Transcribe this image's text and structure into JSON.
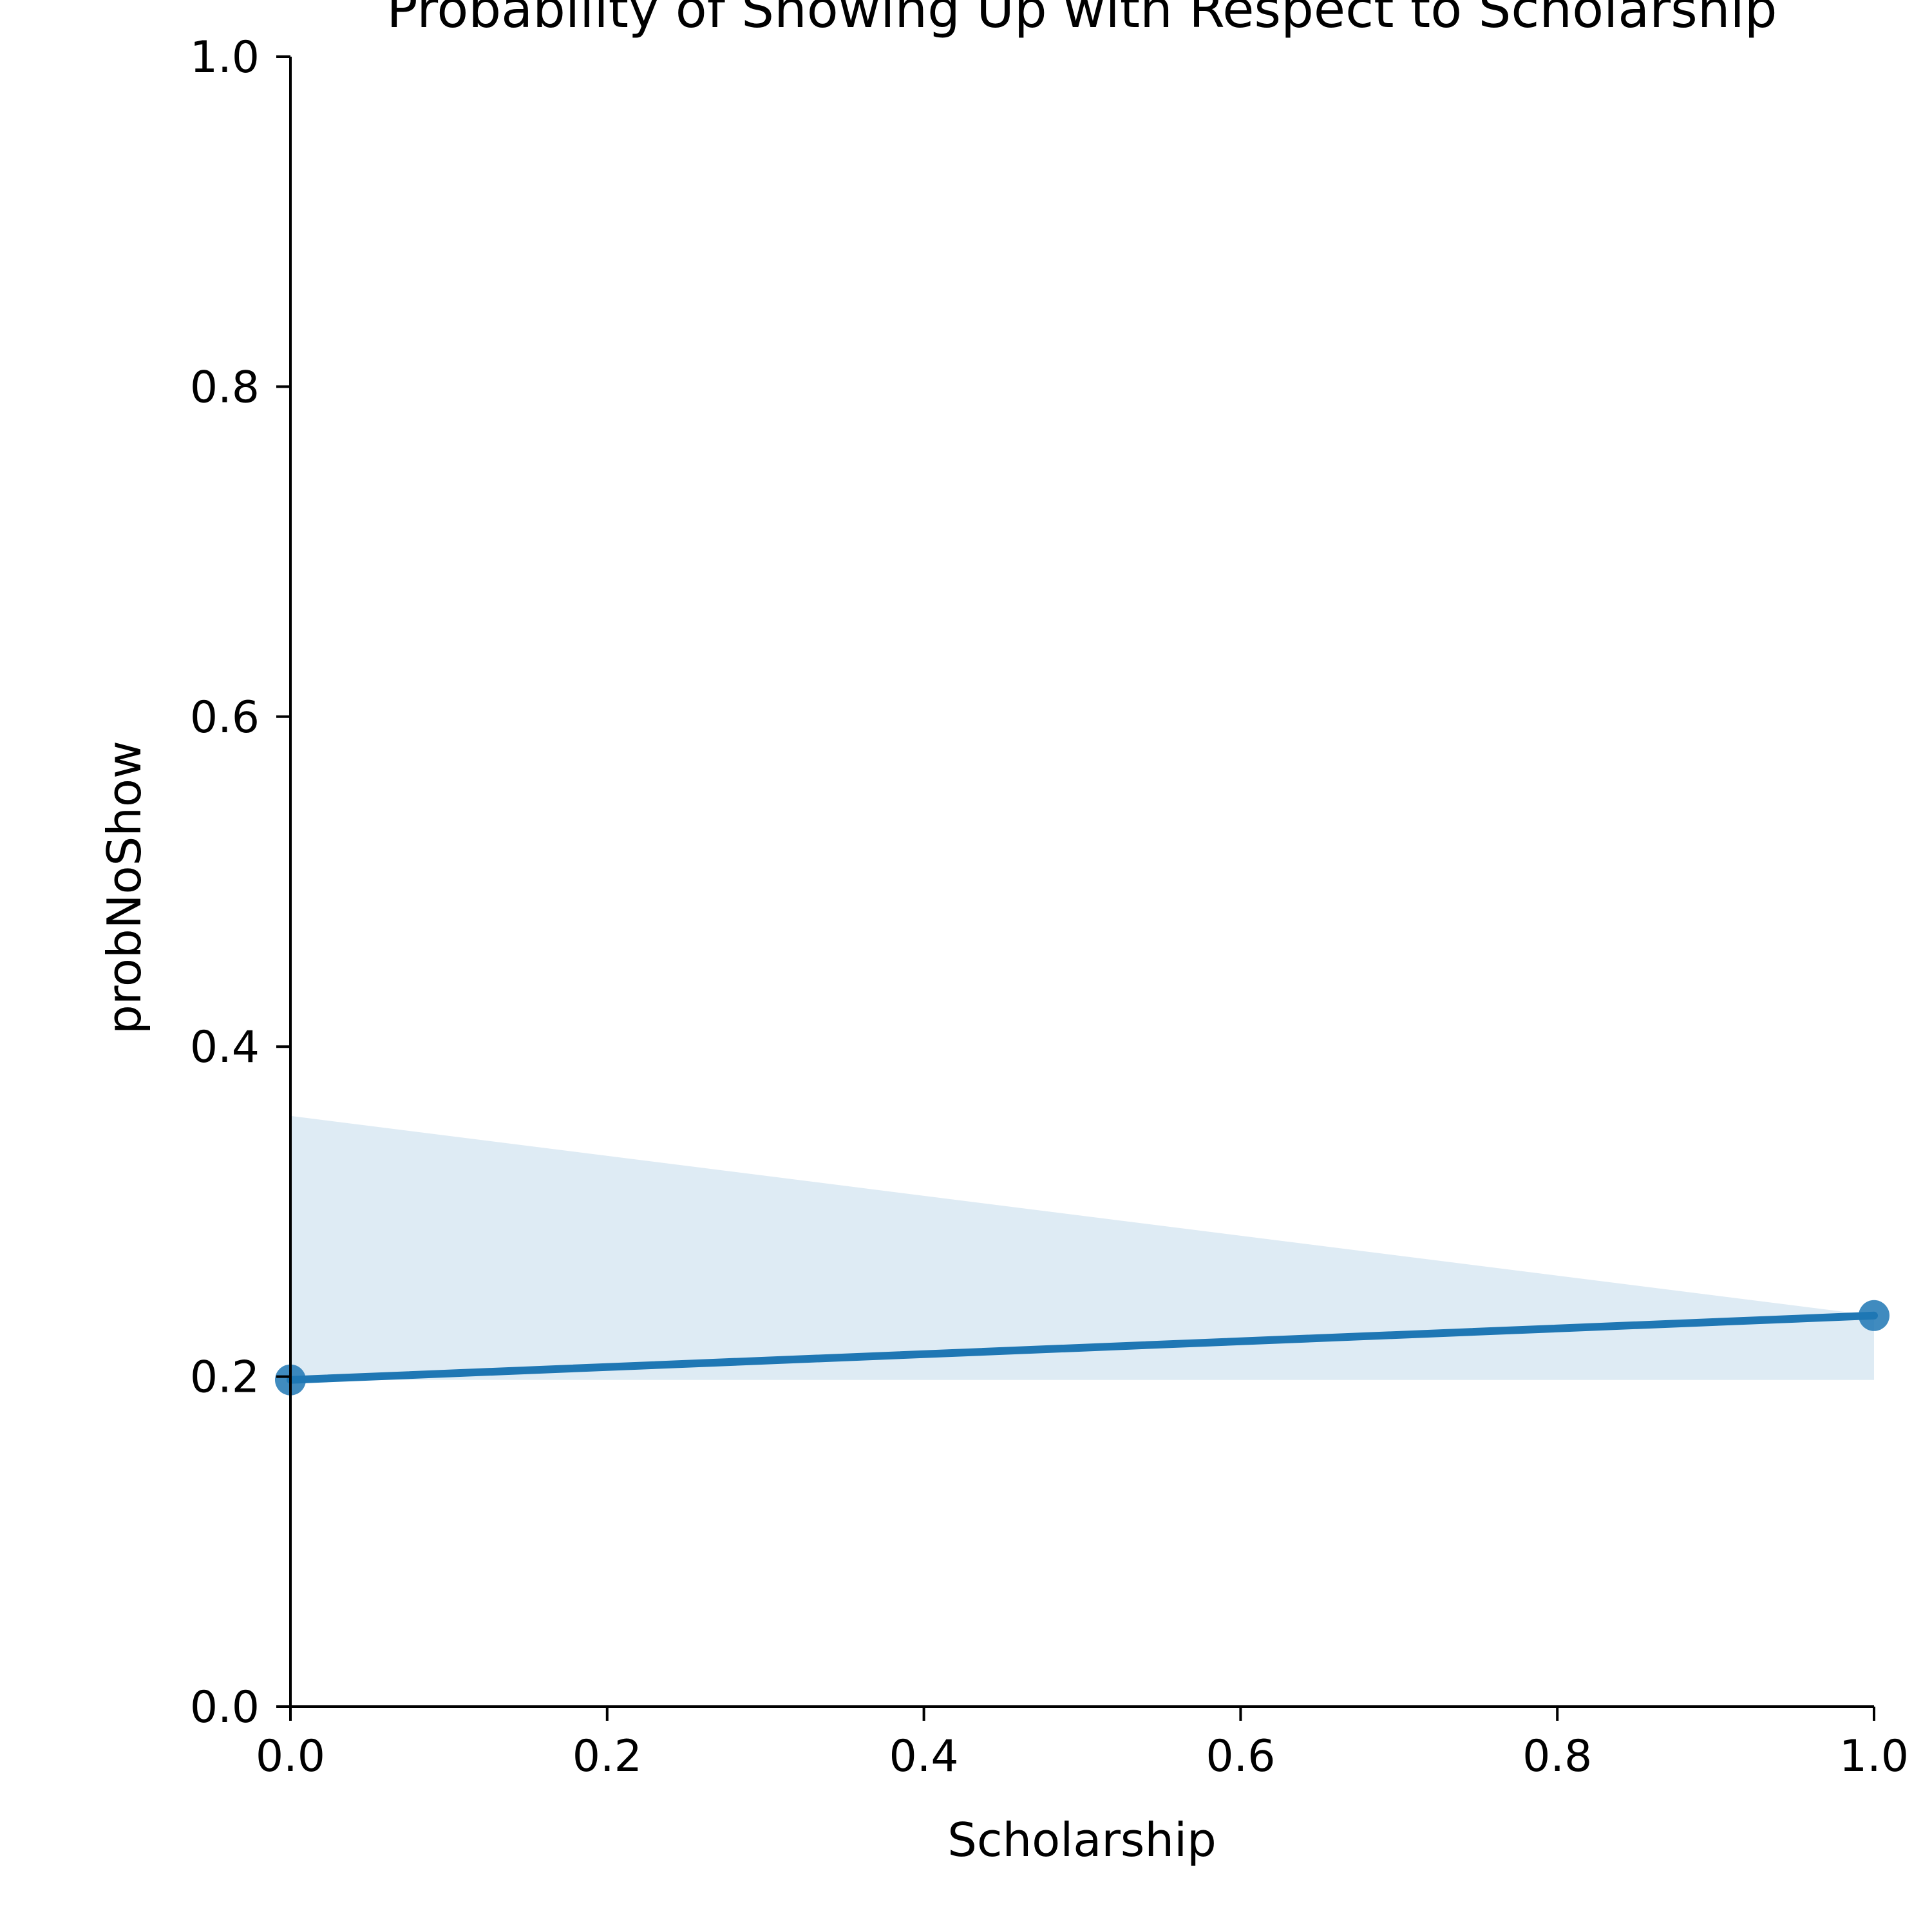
{
  "chart_data": {
    "type": "line",
    "title": "Probability of Showing Up with Respect to Scholarship",
    "xlabel": "Scholarship",
    "ylabel": "probNoShow",
    "xlim": [
      0.0,
      1.0
    ],
    "ylim": [
      0.0,
      1.0
    ],
    "x_ticks": [
      "0.0",
      "0.2",
      "0.4",
      "0.6",
      "0.8",
      "1.0"
    ],
    "y_ticks": [
      "0.0",
      "0.2",
      "0.4",
      "0.6",
      "0.8",
      "1.0"
    ],
    "grid": false,
    "series": [
      {
        "x": [
          0.0,
          1.0
        ],
        "y": [
          0.198,
          0.237
        ],
        "color": "#1f77b4"
      }
    ],
    "confidence_band": {
      "x": [
        0.0,
        1.0
      ],
      "upper": [
        0.358,
        0.237
      ],
      "lower": [
        0.198,
        0.198
      ],
      "color": "#1f77b4",
      "opacity": 0.15
    }
  }
}
